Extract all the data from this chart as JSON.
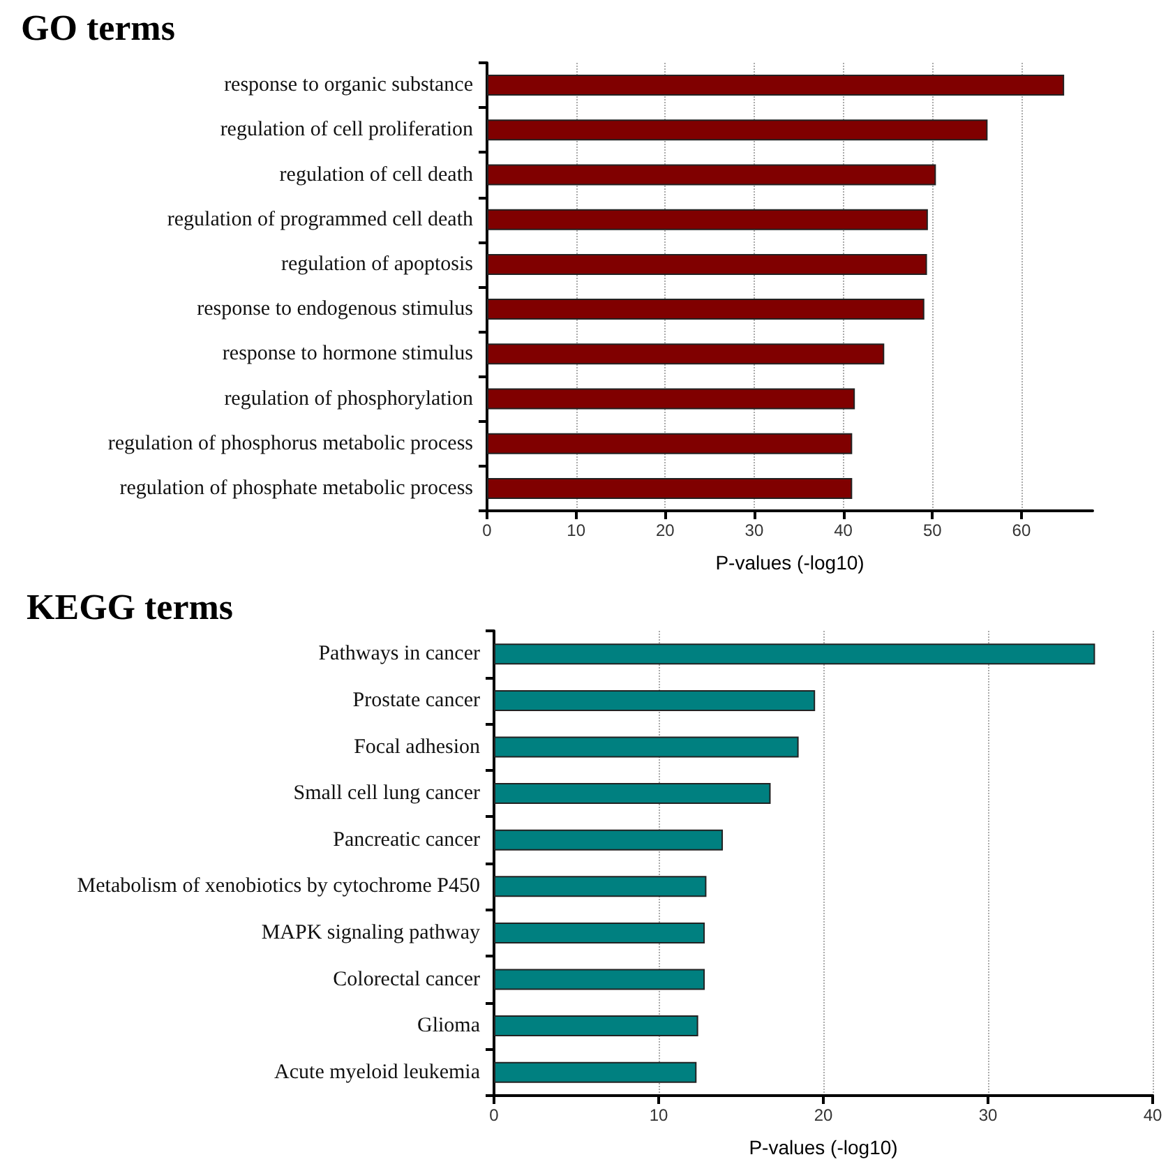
{
  "chart_data": [
    {
      "type": "bar",
      "orientation": "horizontal",
      "title": "GO terms",
      "xlabel": "P-values (-log10)",
      "categories": [
        "response to organic substance",
        "regulation of cell proliferation",
        "regulation of cell death",
        "regulation of programmed cell death",
        "regulation of apoptosis",
        "response to endogenous stimulus",
        "response to hormone stimulus",
        "regulation of phosphorylation",
        "regulation of phosphorus metabolic process",
        "regulation of phosphate metabolic process"
      ],
      "color": "#800000",
      "values": [
        64.8,
        56.2,
        50.4,
        49.5,
        49.4,
        49.1,
        44.6,
        41.3,
        41.0,
        41.0
      ],
      "xlim": [
        0,
        68
      ],
      "xticks": [
        0,
        10,
        20,
        30,
        40,
        50,
        60
      ],
      "grid": "x"
    },
    {
      "type": "bar",
      "orientation": "horizontal",
      "title": "KEGG terms",
      "xlabel": "P-values (-log10)",
      "categories": [
        "Pathways in cancer",
        "Prostate cancer",
        "Focal adhesion",
        "Small cell lung cancer",
        "Pancreatic cancer",
        "Metabolism of xenobiotics by cytochrome P450",
        "MAPK signaling pathway",
        "Colorectal cancer",
        "Glioma",
        "Acute myeloid leukemia"
      ],
      "color": "#008080",
      "values": [
        36.5,
        19.5,
        18.5,
        16.8,
        13.9,
        12.9,
        12.8,
        12.8,
        12.4,
        12.3
      ],
      "xlim": [
        0,
        40
      ],
      "xticks": [
        0,
        10,
        20,
        30,
        40
      ],
      "grid": "x"
    }
  ]
}
